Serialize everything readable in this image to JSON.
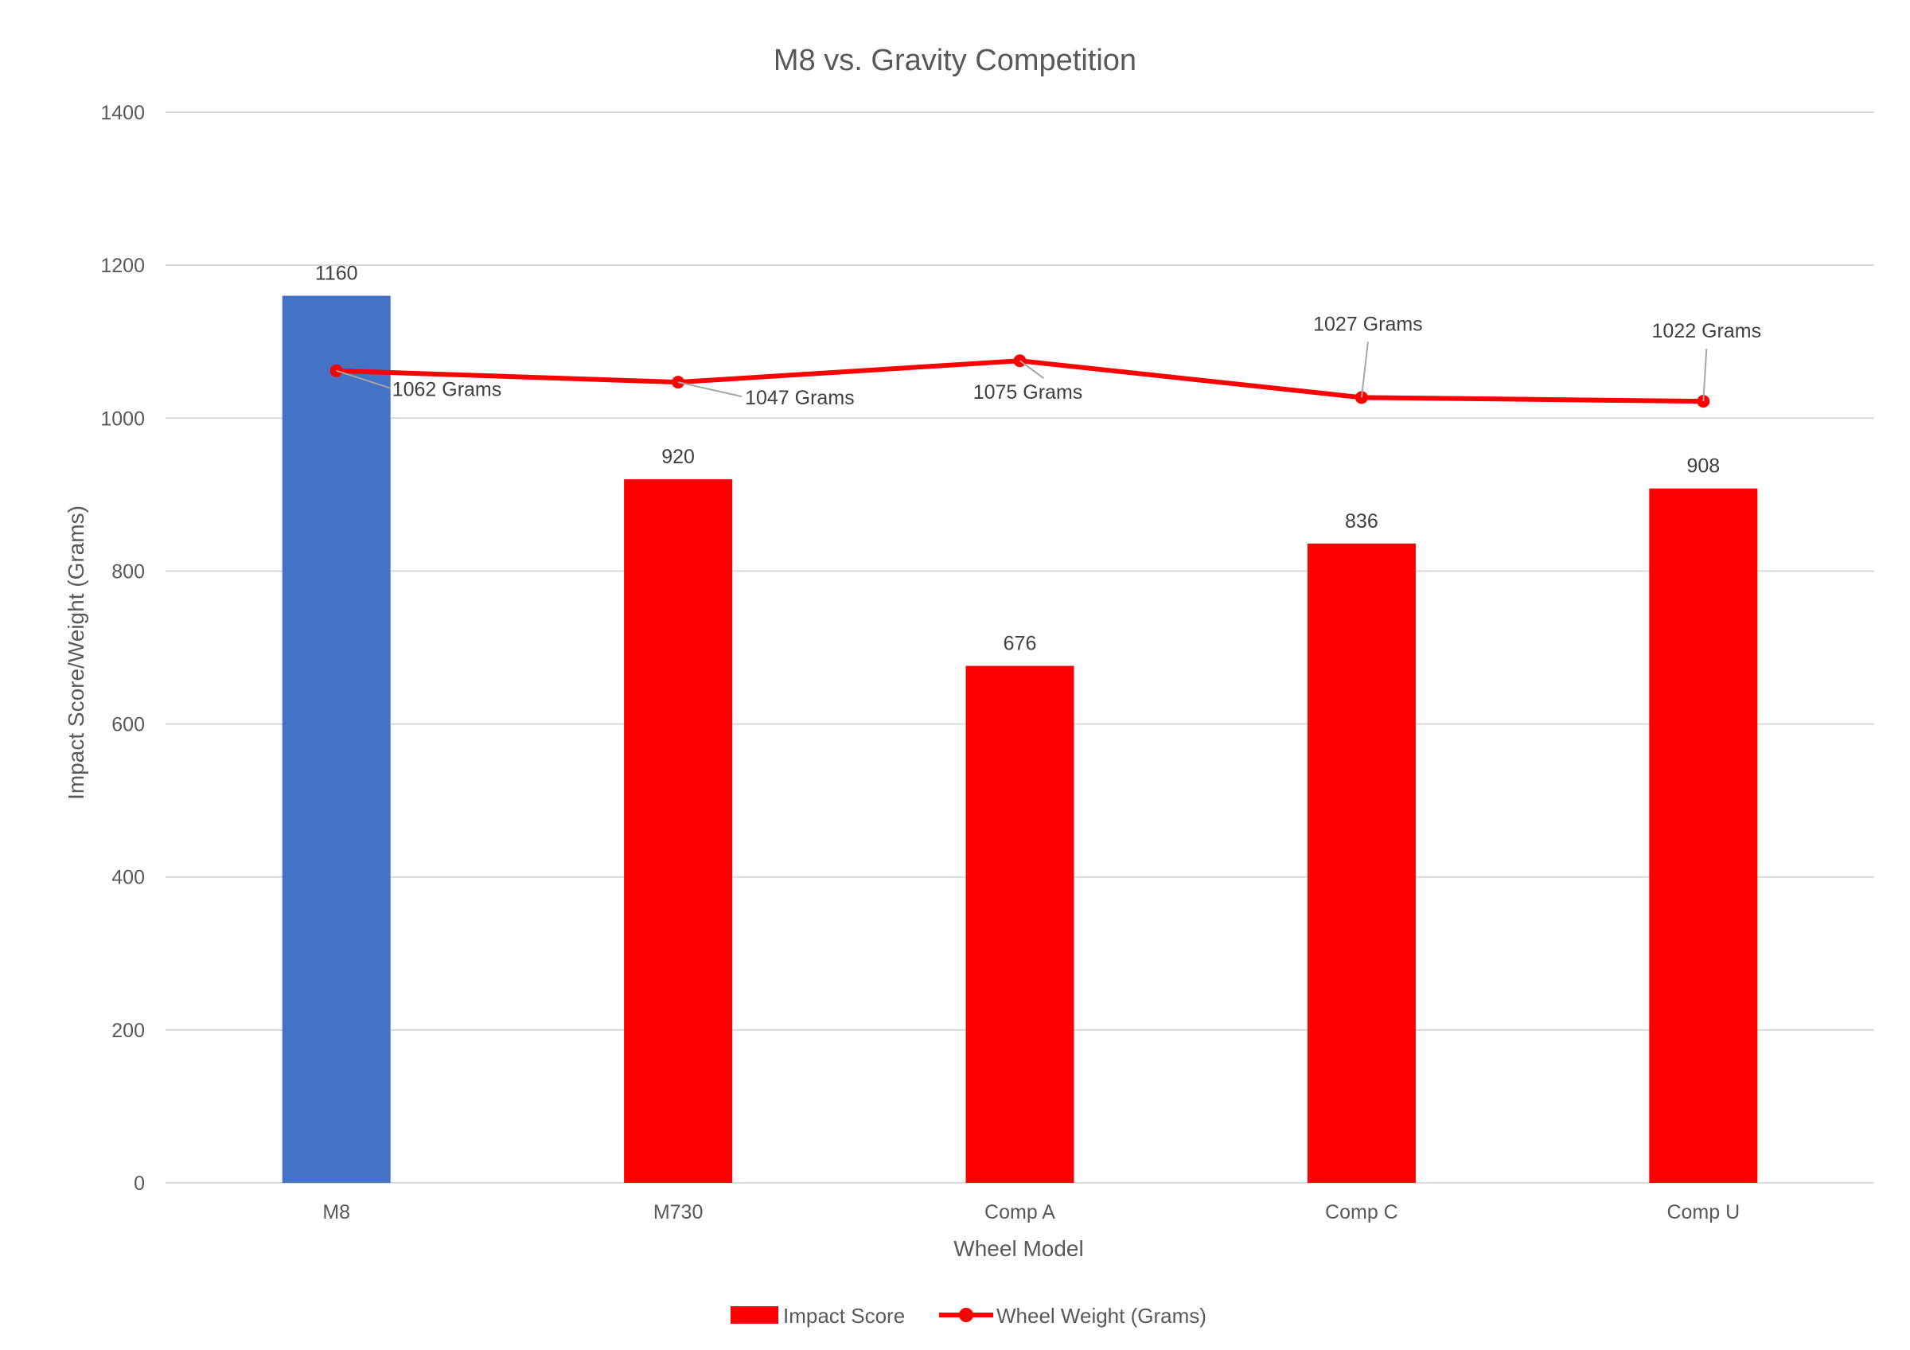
{
  "chart_data": {
    "type": "bar",
    "title": "M8 vs. Gravity Competition",
    "xlabel": "Wheel Model",
    "ylabel": "Impact Score/Weight (Grams)",
    "categories": [
      "M8",
      "M730",
      "Comp A",
      "Comp C",
      "Comp U"
    ],
    "ylim": [
      0,
      1400
    ],
    "yticks": [
      0,
      200,
      400,
      600,
      800,
      1000,
      1200,
      1400
    ],
    "grid": true,
    "legend_position": "bottom",
    "series": [
      {
        "name": "Impact Score",
        "type": "bar",
        "values": [
          1160,
          920,
          676,
          836,
          908
        ],
        "data_labels": [
          "1160",
          "920",
          "676",
          "836",
          "908"
        ],
        "colors": [
          "#4472c4",
          "#ff0000",
          "#ff0000",
          "#ff0000",
          "#ff0000"
        ]
      },
      {
        "name": "Wheel Weight (Grams)",
        "type": "line",
        "values": [
          1062,
          1047,
          1075,
          1027,
          1022
        ],
        "data_labels": [
          "1062 Grams",
          "1047 Grams",
          "1075 Grams",
          "1027 Grams",
          "1022 Grams"
        ],
        "color": "#ff0000"
      }
    ]
  }
}
